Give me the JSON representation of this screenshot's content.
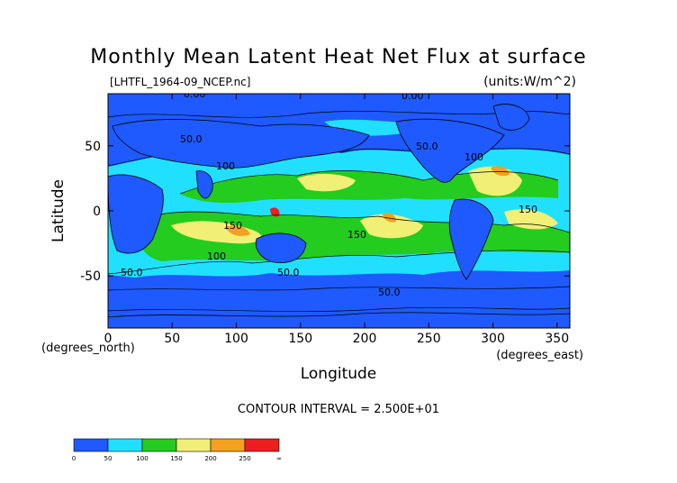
{
  "chart_data": {
    "type": "heatmap",
    "title": "Monthly Mean Latent Heat Net Flux at surface",
    "file_label": "[LHTFL_1964-09_NCEP.nc]",
    "units_label": "(units:W/m^2)",
    "xlabel": "Longitude",
    "ylabel": "Latitude",
    "x_unit_label": "(degrees_east)",
    "y_unit_label": "(degrees_north)",
    "xlim": [
      0,
      360
    ],
    "ylim": [
      -90,
      90
    ],
    "x_ticks": [
      0,
      50,
      100,
      150,
      200,
      250,
      300,
      350
    ],
    "y_ticks": [
      -50,
      0,
      50
    ],
    "footnote": "CONTOUR INTERVAL = 2.500E+01",
    "contour_labels": [
      "0.00",
      "0.00",
      "50.0",
      "50.0",
      "100",
      "100",
      "100",
      "150",
      "150",
      "50.0",
      "50.0",
      "50.0",
      "150"
    ],
    "colorbar": {
      "colors": [
        "#1e5aff",
        "#21e0ff",
        "#23cc1e",
        "#f2ef76",
        "#f5a01e",
        "#ee1e1e"
      ],
      "tick_labels": [
        "0",
        "50",
        "100",
        "150",
        "200",
        "250",
        "∞"
      ],
      "boundaries": [
        0,
        50,
        100,
        150,
        200,
        250
      ]
    }
  }
}
